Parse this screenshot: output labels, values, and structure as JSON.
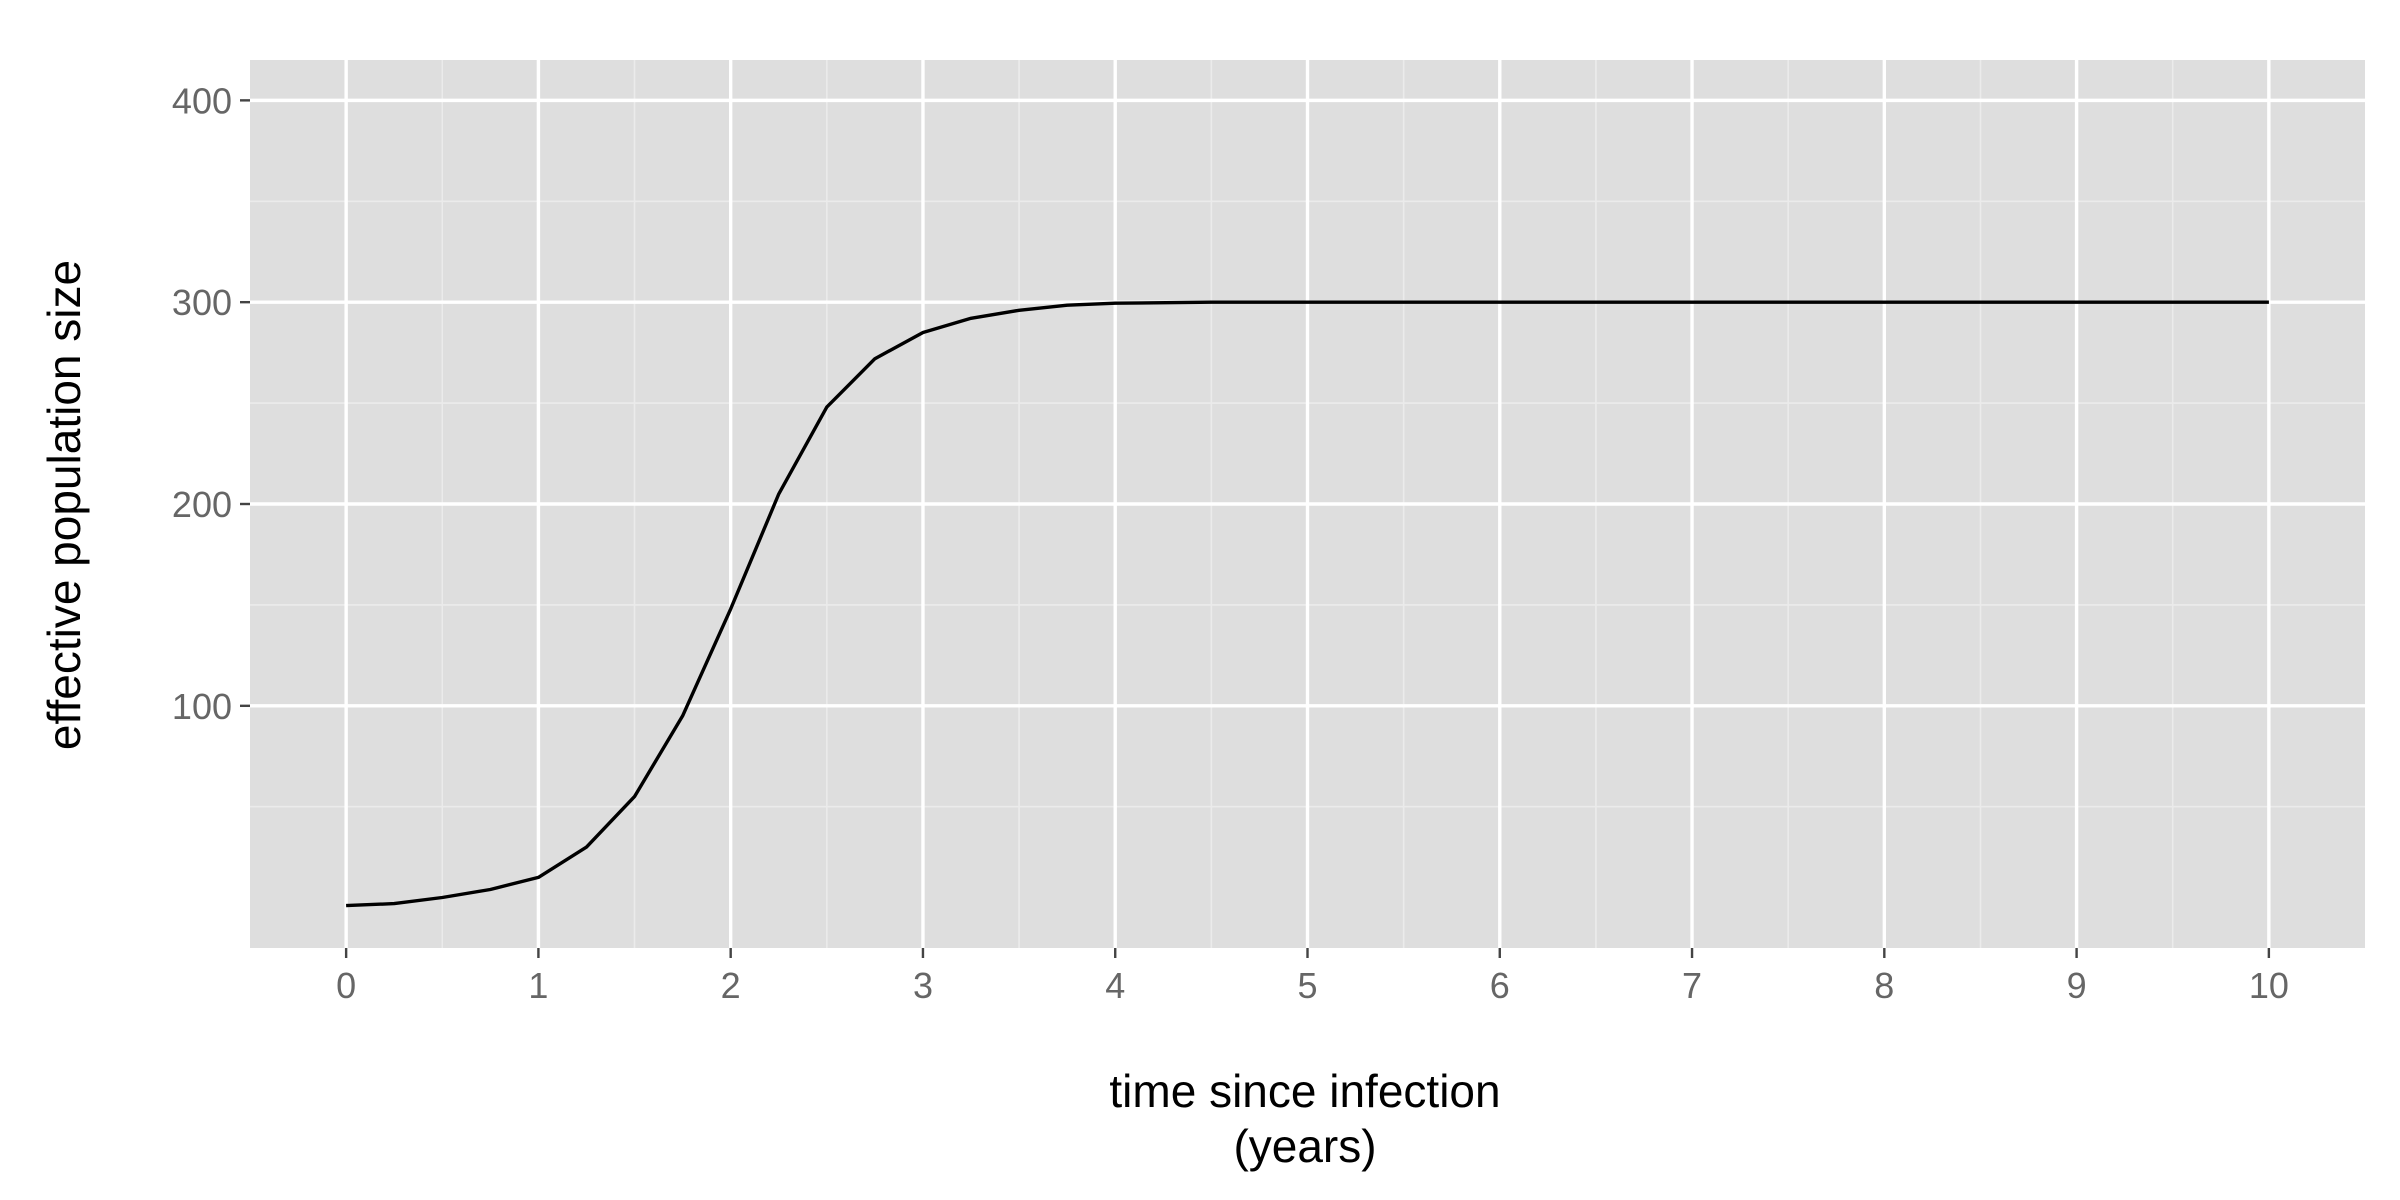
{
  "chart_data": {
    "type": "line",
    "title": "",
    "xlabel_lines": [
      "time since infection",
      "(years)"
    ],
    "ylabel": "effective population size",
    "xlim": [
      -0.5,
      10.5
    ],
    "ylim": [
      -20,
      420
    ],
    "x_ticks": [
      0,
      1,
      2,
      3,
      4,
      5,
      6,
      7,
      8,
      9,
      10
    ],
    "x_tick_labels": [
      "0",
      "1",
      "2",
      "3",
      "4",
      "5",
      "6",
      "7",
      "8",
      "9",
      "10"
    ],
    "y_ticks": [
      100,
      200,
      300,
      400
    ],
    "y_tick_labels": [
      "100",
      "200",
      "300",
      "400"
    ],
    "grid": true,
    "legend": "none",
    "background_color": "#dedede",
    "line_color": "#000000",
    "series": [
      {
        "x": [
          0,
          0.25,
          0.5,
          0.75,
          1.0,
          1.25,
          1.5,
          1.75,
          2.0,
          2.25,
          2.5,
          2.75,
          3.0,
          3.25,
          3.5,
          3.75,
          4.0,
          4.5,
          5.0,
          6.0,
          7.0,
          8.0,
          9.0,
          10.0
        ],
        "values": [
          1,
          2,
          5,
          9,
          15,
          30,
          55,
          95,
          148,
          205,
          248,
          272,
          285,
          292,
          296,
          298.5,
          299.5,
          300,
          300,
          300,
          300,
          300,
          300,
          300
        ]
      }
    ]
  }
}
